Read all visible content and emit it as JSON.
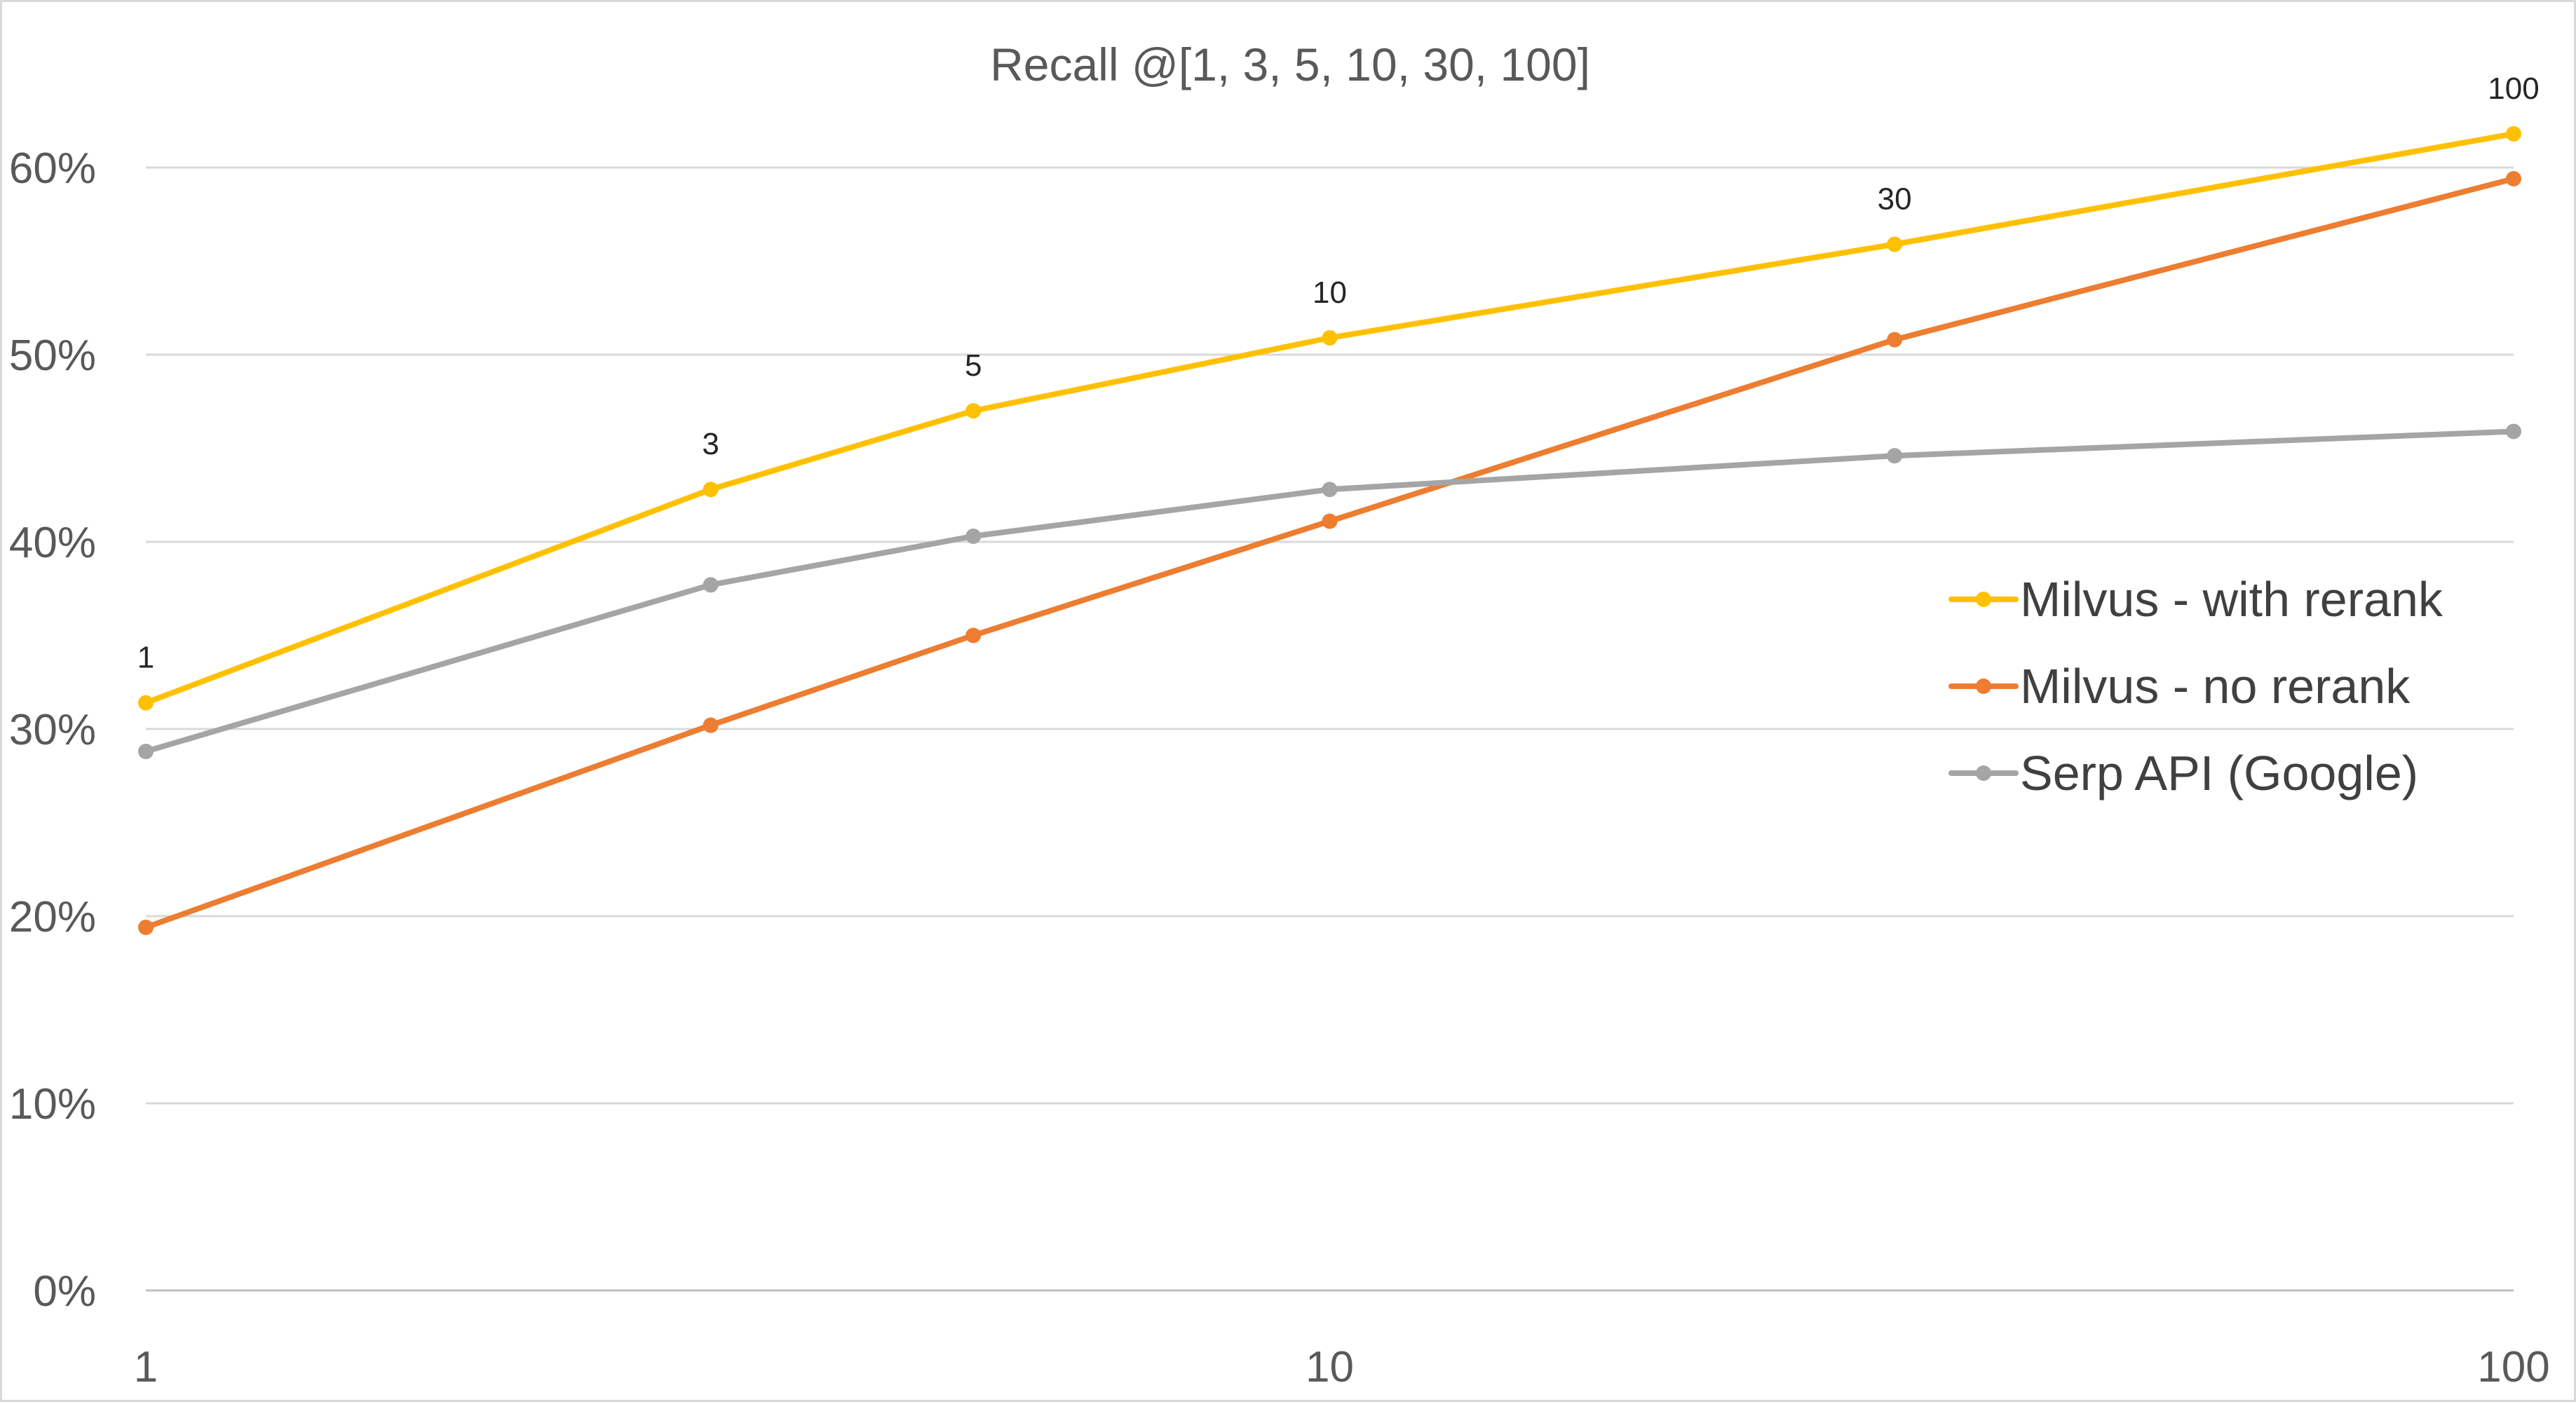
{
  "chart_data": {
    "type": "line",
    "title": "Recall @[1, 3, 5, 10, 30, 100]",
    "xlabel": "",
    "ylabel": "",
    "x_scale": "log",
    "x": [
      1,
      3,
      5,
      10,
      30,
      100
    ],
    "xlim": [
      1,
      100
    ],
    "ylim": [
      0,
      0.6
    ],
    "x_ticks": [
      "1",
      "10",
      "100"
    ],
    "y_ticks": [
      "0%",
      "10%",
      "20%",
      "30%",
      "40%",
      "50%",
      "60%"
    ],
    "grid": true,
    "legend_position": "right",
    "series": [
      {
        "name": "Milvus - with rerank",
        "color": "#ffc000",
        "values": [
          0.314,
          0.428,
          0.47,
          0.509,
          0.559,
          0.618
        ],
        "data_labels": [
          "1",
          "3",
          "5",
          "10",
          "30",
          "100"
        ]
      },
      {
        "name": "Milvus - no rerank",
        "color": "#ed7d31",
        "values": [
          0.194,
          0.302,
          0.35,
          0.411,
          0.508,
          0.594
        ]
      },
      {
        "name": "Serp API (Google)",
        "color": "#a5a5a5",
        "values": [
          0.288,
          0.377,
          0.403,
          0.428,
          0.446,
          0.459
        ]
      }
    ]
  }
}
